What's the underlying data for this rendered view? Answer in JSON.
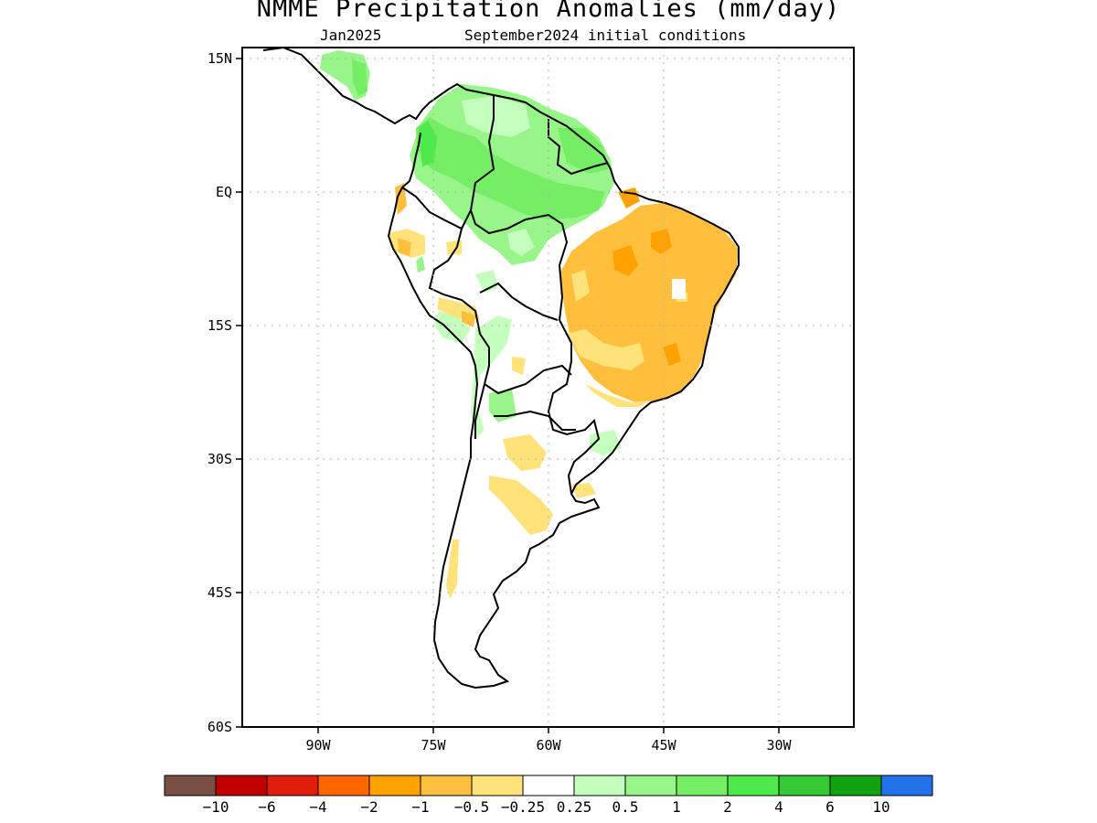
{
  "title": "NMME Precipitation Anomalies (mm/day)",
  "subtitle_left": "Jan2025",
  "subtitle_right": "September2024 initial conditions",
  "lat_labels": [
    "15N",
    "EQ",
    "15S",
    "30S",
    "45S",
    "60S"
  ],
  "lon_labels": [
    "90W",
    "75W",
    "60W",
    "45W",
    "30W"
  ],
  "colorbar": {
    "colors": [
      "#7a4f44",
      "#c00000",
      "#e01d0a",
      "#ff6600",
      "#ffa200",
      "#ffbf3c",
      "#ffe27a",
      "#ffffff",
      "#c4ffbe",
      "#97f58a",
      "#75ee65",
      "#4ee94a",
      "#35c935",
      "#10a010",
      "#2272ea"
    ],
    "labels": [
      "-10",
      "-6",
      "-4",
      "-2",
      "-1",
      "-0.5",
      "-0.25",
      "0.25",
      "0.5",
      "1",
      "2",
      "4",
      "6",
      "10"
    ]
  }
}
